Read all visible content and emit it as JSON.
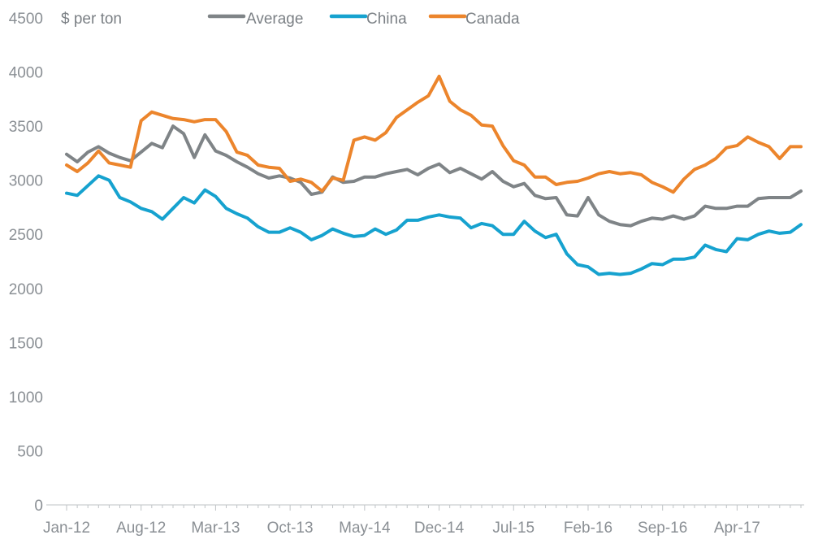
{
  "chart_data": {
    "type": "line",
    "title": "",
    "unit_label": "$ per ton",
    "xlabel": "",
    "ylabel": "",
    "ylim": [
      0,
      4500
    ],
    "y_ticks": [
      0,
      500,
      1000,
      1500,
      2000,
      2500,
      3000,
      3500,
      4000,
      4500
    ],
    "x_tick_labels": [
      "Jan-12",
      "Aug-12",
      "Mar-13",
      "Oct-13",
      "May-14",
      "Dec-14",
      "Jul-15",
      "Feb-16",
      "Sep-16",
      "Apr-17"
    ],
    "x": [
      "Jan-12",
      "Feb-12",
      "Mar-12",
      "Apr-12",
      "May-12",
      "Jun-12",
      "Jul-12",
      "Aug-12",
      "Sep-12",
      "Oct-12",
      "Nov-12",
      "Dec-12",
      "Jan-13",
      "Feb-13",
      "Mar-13",
      "Apr-13",
      "May-13",
      "Jun-13",
      "Jul-13",
      "Aug-13",
      "Sep-13",
      "Oct-13",
      "Nov-13",
      "Dec-13",
      "Jan-14",
      "Feb-14",
      "Mar-14",
      "Apr-14",
      "May-14",
      "Jun-14",
      "Jul-14",
      "Aug-14",
      "Sep-14",
      "Oct-14",
      "Nov-14",
      "Dec-14",
      "Jan-15",
      "Feb-15",
      "Mar-15",
      "Apr-15",
      "May-15",
      "Jun-15",
      "Jul-15",
      "Aug-15",
      "Sep-15",
      "Oct-15",
      "Nov-15",
      "Dec-15",
      "Jan-16",
      "Feb-16",
      "Mar-16",
      "Apr-16",
      "May-16",
      "Jun-16",
      "Jul-16",
      "Aug-16",
      "Sep-16",
      "Oct-16",
      "Nov-16",
      "Dec-16",
      "Jan-17",
      "Feb-17",
      "Mar-17",
      "Apr-17",
      "May-17",
      "Jun-17",
      "Jul-17",
      "Aug-17",
      "Sep-17",
      "Oct-17"
    ],
    "legend_position": "top",
    "grid": false,
    "series": [
      {
        "name": "Average",
        "color": "#7f8487",
        "values": [
          3240,
          3170,
          3260,
          3310,
          3250,
          3210,
          3180,
          3260,
          3340,
          3300,
          3500,
          3430,
          3210,
          3420,
          3270,
          3230,
          3170,
          3120,
          3060,
          3020,
          3040,
          3020,
          2980,
          2870,
          2890,
          3030,
          2980,
          2990,
          3030,
          3030,
          3060,
          3080,
          3100,
          3050,
          3110,
          3150,
          3070,
          3110,
          3060,
          3010,
          3080,
          2990,
          2940,
          2970,
          2860,
          2830,
          2840,
          2680,
          2670,
          2840,
          2680,
          2620,
          2590,
          2580,
          2620,
          2650,
          2640,
          2670,
          2640,
          2670,
          2760,
          2740,
          2740,
          2760,
          2760,
          2830,
          2840,
          2840,
          2840,
          2900
        ]
      },
      {
        "name": "China",
        "color": "#16a2cf",
        "values": [
          2880,
          2860,
          2950,
          3040,
          3000,
          2840,
          2800,
          2740,
          2710,
          2640,
          2740,
          2840,
          2790,
          2910,
          2850,
          2740,
          2690,
          2650,
          2570,
          2520,
          2520,
          2560,
          2520,
          2450,
          2490,
          2550,
          2510,
          2480,
          2490,
          2550,
          2500,
          2540,
          2630,
          2630,
          2660,
          2680,
          2660,
          2650,
          2560,
          2600,
          2580,
          2500,
          2500,
          2620,
          2530,
          2470,
          2500,
          2320,
          2220,
          2200,
          2130,
          2140,
          2130,
          2140,
          2180,
          2230,
          2220,
          2270,
          2270,
          2290,
          2400,
          2360,
          2340,
          2460,
          2450,
          2500,
          2530,
          2510,
          2520,
          2590
        ]
      },
      {
        "name": "Canada",
        "color": "#ec852c",
        "values": [
          3140,
          3080,
          3160,
          3270,
          3160,
          3140,
          3120,
          3550,
          3630,
          3600,
          3570,
          3560,
          3540,
          3560,
          3560,
          3450,
          3260,
          3230,
          3140,
          3120,
          3110,
          2990,
          3010,
          2980,
          2900,
          3020,
          3000,
          3370,
          3400,
          3370,
          3440,
          3580,
          3650,
          3720,
          3780,
          3960,
          3730,
          3650,
          3600,
          3510,
          3500,
          3320,
          3180,
          3140,
          3030,
          3030,
          2960,
          2980,
          2990,
          3020,
          3060,
          3080,
          3060,
          3070,
          3050,
          2980,
          2940,
          2890,
          3010,
          3100,
          3140,
          3200,
          3300,
          3320,
          3400,
          3350,
          3310,
          3200,
          3310,
          3310
        ]
      }
    ]
  }
}
